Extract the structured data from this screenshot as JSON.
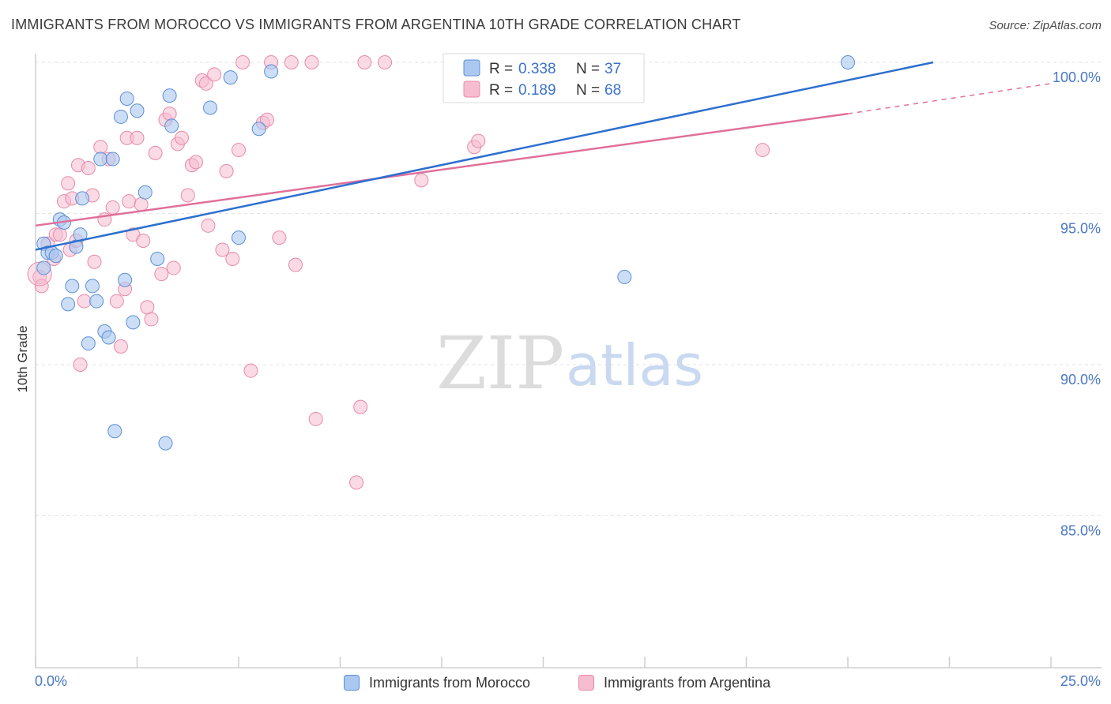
{
  "header": {
    "title": "IMMIGRANTS FROM MOROCCO VS IMMIGRANTS FROM ARGENTINA 10TH GRADE CORRELATION CHART",
    "source": "Source: ZipAtlas.com"
  },
  "watermark": {
    "zip": "ZIP",
    "atlas": "atlas"
  },
  "colors": {
    "morocco_fill": "#aac8f0",
    "morocco_stroke": "#5b8fd6",
    "morocco_line": "#2d6fcf",
    "argentina_fill": "#f6bcd0",
    "argentina_stroke": "#e88aaa",
    "argentina_line": "#e0709a",
    "axis_text": "#4a78c4",
    "grid": "#e3e3e3"
  },
  "legend": {
    "rows": [
      {
        "r_label": "R = ",
        "r_value": "0.338",
        "n_label": "N = ",
        "n_value": "37"
      },
      {
        "r_label": "R = ",
        "r_value": "0.189",
        "n_label": "N = ",
        "n_value": "68"
      }
    ]
  },
  "bottom_legend": {
    "morocco": "Immigrants from Morocco",
    "argentina": "Immigrants from Argentina"
  },
  "chart_data": {
    "type": "scatter",
    "title": "IMMIGRANTS FROM MOROCCO VS IMMIGRANTS FROM ARGENTINA 10TH GRADE CORRELATION CHART",
    "xlabel": "",
    "ylabel": "10th Grade",
    "xlim": [
      0,
      25
    ],
    "ylim": [
      80.5,
      100.5
    ],
    "x_tick_labels": [
      "0.0%",
      "25.0%"
    ],
    "y_ticks": [
      85,
      90,
      95,
      100
    ],
    "y_tick_labels": [
      "85.0%",
      "90.0%",
      "95.0%",
      "100.0%"
    ],
    "grid": true,
    "legend_position": "top-center",
    "series": [
      {
        "name": "Immigrants from Morocco",
        "R": 0.338,
        "N": 37,
        "trend": {
          "x": [
            0,
            22.1
          ],
          "y": [
            93.8,
            100.0
          ]
        },
        "points": [
          [
            0.2,
            93.2
          ],
          [
            0.2,
            94.0
          ],
          [
            0.3,
            93.7
          ],
          [
            0.4,
            93.7
          ],
          [
            0.5,
            93.6
          ],
          [
            0.6,
            94.8
          ],
          [
            0.7,
            94.7
          ],
          [
            0.8,
            92.0
          ],
          [
            0.9,
            92.6
          ],
          [
            1.0,
            93.9
          ],
          [
            1.1,
            94.3
          ],
          [
            1.15,
            95.5
          ],
          [
            1.3,
            90.7
          ],
          [
            1.4,
            92.6
          ],
          [
            1.5,
            92.1
          ],
          [
            1.6,
            96.8
          ],
          [
            1.7,
            91.1
          ],
          [
            1.8,
            90.9
          ],
          [
            1.9,
            96.8
          ],
          [
            1.95,
            87.8
          ],
          [
            2.1,
            98.2
          ],
          [
            2.2,
            92.8
          ],
          [
            2.25,
            98.8
          ],
          [
            2.4,
            91.4
          ],
          [
            2.5,
            98.4
          ],
          [
            2.7,
            95.7
          ],
          [
            3.0,
            93.5
          ],
          [
            3.2,
            87.4
          ],
          [
            3.3,
            98.9
          ],
          [
            3.35,
            97.9
          ],
          [
            4.3,
            98.5
          ],
          [
            4.8,
            99.5
          ],
          [
            5.0,
            94.2
          ],
          [
            5.5,
            97.8
          ],
          [
            5.8,
            99.7
          ],
          [
            14.5,
            92.9
          ],
          [
            20.0,
            100.0
          ]
        ]
      },
      {
        "name": "Immigrants from Argentina",
        "R": 0.189,
        "N": 68,
        "trend": {
          "x": [
            0,
            20.0
          ],
          "y": [
            94.6,
            98.3
          ]
        },
        "trend_dashed": {
          "x": [
            20.0,
            25.0
          ],
          "y": [
            98.3,
            99.3
          ]
        },
        "points": [
          [
            0.1,
            92.9
          ],
          [
            0.15,
            92.6
          ],
          [
            0.3,
            94.0
          ],
          [
            0.45,
            93.5
          ],
          [
            0.5,
            94.3
          ],
          [
            0.6,
            94.3
          ],
          [
            0.7,
            95.4
          ],
          [
            0.8,
            96.0
          ],
          [
            0.85,
            93.8
          ],
          [
            0.9,
            95.5
          ],
          [
            1.0,
            94.1
          ],
          [
            1.05,
            96.6
          ],
          [
            1.1,
            90.0
          ],
          [
            1.2,
            92.1
          ],
          [
            1.3,
            96.5
          ],
          [
            1.4,
            95.6
          ],
          [
            1.45,
            93.4
          ],
          [
            1.6,
            97.2
          ],
          [
            1.7,
            94.8
          ],
          [
            1.8,
            96.8
          ],
          [
            1.9,
            95.2
          ],
          [
            2.0,
            92.1
          ],
          [
            2.1,
            90.6
          ],
          [
            2.2,
            92.5
          ],
          [
            2.25,
            97.5
          ],
          [
            2.3,
            95.4
          ],
          [
            2.4,
            94.3
          ],
          [
            2.5,
            97.5
          ],
          [
            2.6,
            95.3
          ],
          [
            2.65,
            94.1
          ],
          [
            2.75,
            91.9
          ],
          [
            2.85,
            91.5
          ],
          [
            2.95,
            97.0
          ],
          [
            3.1,
            93.0
          ],
          [
            3.2,
            98.1
          ],
          [
            3.3,
            98.3
          ],
          [
            3.4,
            93.2
          ],
          [
            3.5,
            97.3
          ],
          [
            3.6,
            97.5
          ],
          [
            3.75,
            95.6
          ],
          [
            3.85,
            96.6
          ],
          [
            3.95,
            96.7
          ],
          [
            4.1,
            99.4
          ],
          [
            4.2,
            99.3
          ],
          [
            4.25,
            94.6
          ],
          [
            4.4,
            99.6
          ],
          [
            4.6,
            93.8
          ],
          [
            4.7,
            96.4
          ],
          [
            4.85,
            93.5
          ],
          [
            5.0,
            97.1
          ],
          [
            5.1,
            100.0
          ],
          [
            5.3,
            89.8
          ],
          [
            5.6,
            98.0
          ],
          [
            5.7,
            98.1
          ],
          [
            5.8,
            100.0
          ],
          [
            6.0,
            94.2
          ],
          [
            6.3,
            100.0
          ],
          [
            6.4,
            93.3
          ],
          [
            6.8,
            100.0
          ],
          [
            6.9,
            88.2
          ],
          [
            7.9,
            86.1
          ],
          [
            8.0,
            88.6
          ],
          [
            8.1,
            100.0
          ],
          [
            8.6,
            100.0
          ],
          [
            9.5,
            96.1
          ],
          [
            10.8,
            97.2
          ],
          [
            10.9,
            97.4
          ],
          [
            17.9,
            97.1
          ]
        ]
      }
    ]
  }
}
